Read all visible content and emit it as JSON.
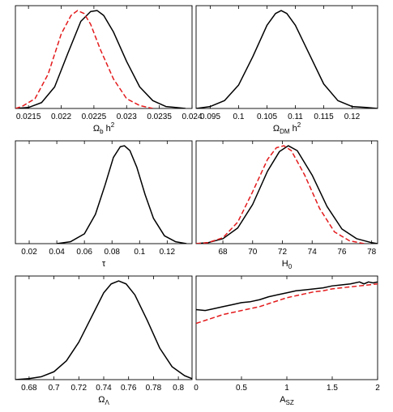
{
  "chart_data": [
    {
      "type": "line",
      "xlabel_main": "Ω",
      "xlabel_sub": "b",
      "xlabel_rest": " h",
      "xlabel_sup": "2",
      "xlim": [
        0.0213,
        0.024
      ],
      "xticks": [
        0.0215,
        0.022,
        0.0225,
        0.023,
        0.0235,
        0.024
      ],
      "xtick_labels": [
        "0.0215",
        "0.022",
        "0.0225",
        "0.023",
        "0.0235",
        "0.024"
      ],
      "ylim": [
        0,
        1.05
      ],
      "series": [
        {
          "color": "#000000",
          "style": "solid",
          "x": [
            0.0213,
            0.0215,
            0.0217,
            0.0219,
            0.0221,
            0.0223,
            0.02245,
            0.02255,
            0.02265,
            0.0228,
            0.023,
            0.0232,
            0.0234,
            0.0236,
            0.02375,
            0.0239
          ],
          "y": [
            0.0,
            0.01,
            0.06,
            0.22,
            0.56,
            0.89,
            0.99,
            1.0,
            0.95,
            0.78,
            0.48,
            0.22,
            0.08,
            0.02,
            0.01,
            0.0
          ]
        },
        {
          "color": "#e31a1c",
          "style": "dashed",
          "x": [
            0.0213,
            0.0214,
            0.0216,
            0.0218,
            0.022,
            0.02215,
            0.02225,
            0.02235,
            0.02245,
            0.0226,
            0.0228,
            0.023,
            0.0232,
            0.0234
          ],
          "y": [
            0.0,
            0.02,
            0.1,
            0.35,
            0.76,
            0.95,
            1.0,
            0.97,
            0.86,
            0.6,
            0.3,
            0.1,
            0.03,
            0.0
          ]
        }
      ]
    },
    {
      "type": "line",
      "xlabel_main": "Ω",
      "xlabel_sub": "DM",
      "xlabel_rest": " h",
      "xlabel_sup": "2",
      "xlim": [
        0.0925,
        0.1245
      ],
      "xticks": [
        0.095,
        0.1,
        0.105,
        0.11,
        0.115,
        0.12
      ],
      "xtick_labels": [
        "0.095",
        "0.1",
        "0.105",
        "0.11",
        "0.115",
        "0.12"
      ],
      "ylim": [
        0,
        1.05
      ],
      "series": [
        {
          "color": "#000000",
          "style": "solid",
          "x": [
            0.0925,
            0.095,
            0.0975,
            0.1,
            0.1025,
            0.105,
            0.1065,
            0.1075,
            0.1085,
            0.11,
            0.1125,
            0.115,
            0.1175,
            0.12,
            0.1225,
            0.1245
          ],
          "y": [
            0.0,
            0.02,
            0.08,
            0.24,
            0.53,
            0.85,
            0.97,
            1.0,
            0.97,
            0.85,
            0.55,
            0.25,
            0.08,
            0.02,
            0.01,
            0.0
          ]
        }
      ]
    },
    {
      "type": "line",
      "xlabel_main": "τ",
      "xlabel_sub": "",
      "xlabel_rest": "",
      "xlabel_sup": "",
      "xlim": [
        0.01,
        0.138
      ],
      "xticks": [
        0.02,
        0.04,
        0.06,
        0.08,
        0.1,
        0.12
      ],
      "xtick_labels": [
        "0.02",
        "0.04",
        "0.06",
        "0.08",
        "0.1",
        "0.12"
      ],
      "ylim": [
        0,
        1.05
      ],
      "series": [
        {
          "color": "#000000",
          "style": "solid",
          "x": [
            0.04,
            0.05,
            0.06,
            0.068,
            0.075,
            0.081,
            0.086,
            0.089,
            0.093,
            0.098,
            0.104,
            0.11,
            0.118,
            0.126,
            0.134
          ],
          "y": [
            0.0,
            0.02,
            0.1,
            0.3,
            0.6,
            0.88,
            0.99,
            1.0,
            0.95,
            0.78,
            0.5,
            0.26,
            0.08,
            0.02,
            0.0
          ]
        }
      ]
    },
    {
      "type": "line",
      "xlabel_main": "H",
      "xlabel_sub": "0",
      "xlabel_rest": "",
      "xlabel_sup": "",
      "xlim": [
        66.2,
        78.4
      ],
      "xticks": [
        68,
        70,
        72,
        74,
        76,
        78
      ],
      "xtick_labels": [
        "68",
        "70",
        "72",
        "74",
        "76",
        "78"
      ],
      "ylim": [
        0,
        1.05
      ],
      "series": [
        {
          "color": "#000000",
          "style": "solid",
          "x": [
            66.2,
            67.0,
            68.0,
            69.0,
            70.0,
            71.0,
            71.8,
            72.4,
            73.0,
            74.0,
            75.0,
            76.0,
            77.0,
            78.0,
            78.4
          ],
          "y": [
            0.0,
            0.01,
            0.05,
            0.16,
            0.4,
            0.74,
            0.94,
            1.0,
            0.95,
            0.7,
            0.38,
            0.15,
            0.05,
            0.01,
            0.0
          ]
        },
        {
          "color": "#e31a1c",
          "style": "dashed",
          "x": [
            66.2,
            67.0,
            68.0,
            69.0,
            70.0,
            71.0,
            71.6,
            72.1,
            72.6,
            73.5,
            74.5,
            75.5,
            76.5,
            77.5
          ],
          "y": [
            0.0,
            0.01,
            0.06,
            0.22,
            0.53,
            0.86,
            0.98,
            1.0,
            0.95,
            0.7,
            0.36,
            0.12,
            0.03,
            0.0
          ]
        }
      ]
    },
    {
      "type": "line",
      "xlabel_main": "Ω",
      "xlabel_sub": "Λ",
      "xlabel_rest": "",
      "xlabel_sup": "",
      "xlim": [
        0.669,
        0.811
      ],
      "xticks": [
        0.68,
        0.7,
        0.72,
        0.74,
        0.76,
        0.78,
        0.8
      ],
      "xtick_labels": [
        "0.68",
        "0.7",
        "0.72",
        "0.74",
        "0.76",
        "0.78",
        "0.8"
      ],
      "ylim": [
        0,
        1.05
      ],
      "series": [
        {
          "color": "#000000",
          "style": "solid",
          "x": [
            0.669,
            0.68,
            0.69,
            0.7,
            0.71,
            0.72,
            0.73,
            0.74,
            0.746,
            0.752,
            0.758,
            0.765,
            0.775,
            0.785,
            0.795,
            0.805,
            0.811
          ],
          "y": [
            0.0,
            0.01,
            0.03,
            0.08,
            0.19,
            0.38,
            0.63,
            0.88,
            0.97,
            1.0,
            0.97,
            0.86,
            0.6,
            0.32,
            0.13,
            0.04,
            0.01
          ]
        }
      ]
    },
    {
      "type": "line",
      "xlabel_main": "A",
      "xlabel_sub": "SZ",
      "xlabel_rest": "",
      "xlabel_sup": "",
      "xlim": [
        0,
        2
      ],
      "xticks": [
        0,
        0.5,
        1,
        1.5,
        2
      ],
      "xtick_labels": [
        "0",
        "0.5",
        "1",
        "1.5",
        "2"
      ],
      "ylim": [
        0,
        1.05
      ],
      "series": [
        {
          "color": "#000000",
          "style": "solid",
          "x": [
            0.0,
            0.1,
            0.2,
            0.3,
            0.4,
            0.5,
            0.6,
            0.7,
            0.8,
            0.9,
            1.0,
            1.1,
            1.2,
            1.3,
            1.4,
            1.5,
            1.6,
            1.7,
            1.8,
            1.85,
            1.9,
            1.95,
            2.0
          ],
          "y": [
            0.71,
            0.7,
            0.72,
            0.74,
            0.76,
            0.78,
            0.79,
            0.81,
            0.84,
            0.86,
            0.88,
            0.9,
            0.91,
            0.92,
            0.93,
            0.95,
            0.96,
            0.97,
            0.99,
            0.97,
            0.99,
            0.98,
            0.99
          ]
        },
        {
          "color": "#e31a1c",
          "style": "dashed",
          "x": [
            0.0,
            0.1,
            0.2,
            0.3,
            0.4,
            0.5,
            0.6,
            0.7,
            0.8,
            0.9,
            1.0,
            1.1,
            1.2,
            1.3,
            1.4,
            1.5,
            1.6,
            1.7,
            1.8,
            1.9,
            2.0
          ],
          "y": [
            0.57,
            0.6,
            0.63,
            0.66,
            0.68,
            0.7,
            0.72,
            0.74,
            0.77,
            0.8,
            0.83,
            0.85,
            0.87,
            0.89,
            0.9,
            0.92,
            0.93,
            0.94,
            0.95,
            0.96,
            0.97
          ]
        }
      ]
    }
  ]
}
